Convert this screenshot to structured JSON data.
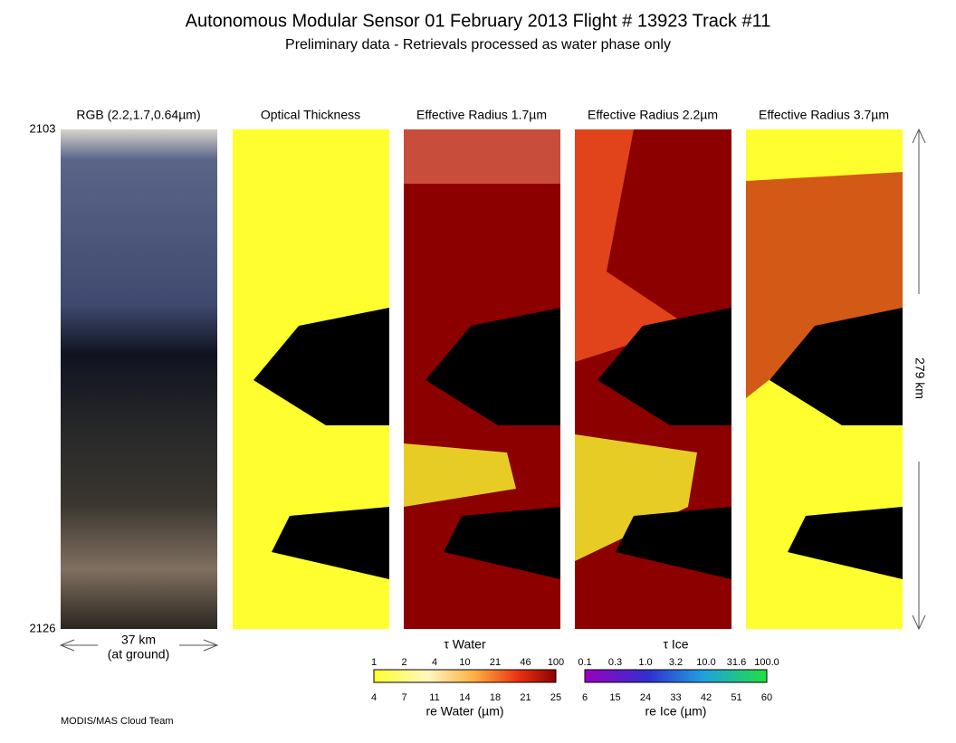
{
  "header": {
    "title": "Autonomous Modular Sensor  01 February 2013  Flight # 13923 Track #11",
    "subtitle": "Preliminary data - Retrievals processed as water phase only"
  },
  "panels": [
    {
      "title": "RGB (2.2,1.7,0.64µm)"
    },
    {
      "title": "Optical Thickness"
    },
    {
      "title": "Effective Radius 1.7µm"
    },
    {
      "title": "Effective Radius 2.2µm"
    },
    {
      "title": "Effective Radius 3.7µm"
    }
  ],
  "time_start": "2103",
  "time_end": "2126",
  "swath_width": "37 km",
  "swath_note": "(at ground)",
  "track_length": "279 km",
  "colorbars": [
    {
      "top_title": "τ Water",
      "top_ticks": [
        "1",
        "2",
        "4",
        "10",
        "21",
        "46",
        "100"
      ],
      "bottom_ticks": [
        "4",
        "7",
        "11",
        "14",
        "18",
        "21",
        "25"
      ],
      "bottom_title": "re Water (µm)"
    },
    {
      "top_title": "τ Ice",
      "top_ticks": [
        "0.1",
        "0.3",
        "1.0",
        "3.2",
        "10.0",
        "31.6",
        "100.0"
      ],
      "bottom_ticks": [
        "6",
        "15",
        "24",
        "33",
        "42",
        "51",
        "60"
      ],
      "bottom_title": "re Ice (µm)"
    }
  ],
  "footer": "MODIS/MAS Cloud Team"
}
